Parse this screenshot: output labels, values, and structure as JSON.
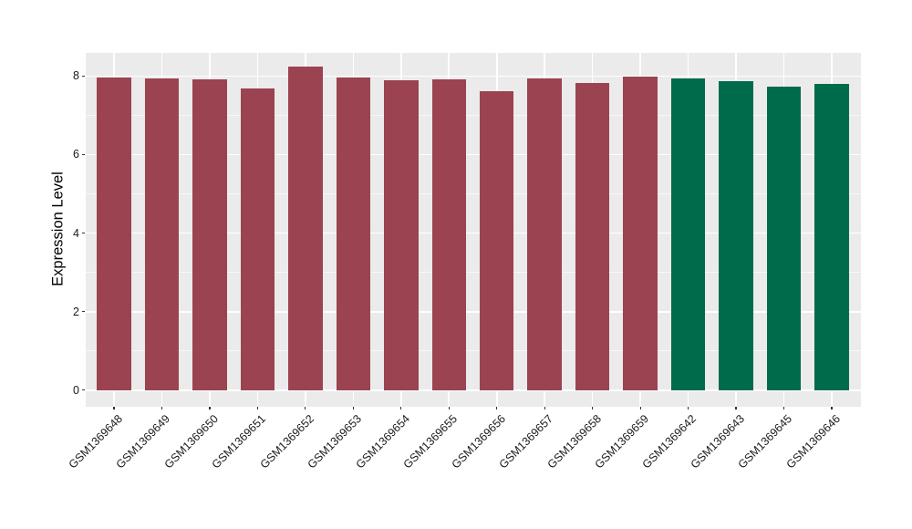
{
  "figure": {
    "background_color": "#ffffff",
    "panel_background_color": "#ebebeb",
    "grid_major_color": "#ffffff",
    "axis_text_color": "#1a1a1a",
    "tick_mark_color": "#333333"
  },
  "chart_data": {
    "type": "bar",
    "title": "",
    "xlabel": "",
    "ylabel": "Expression Level",
    "categories": [
      "GSM1369648",
      "GSM1369649",
      "GSM1369650",
      "GSM1369651",
      "GSM1369652",
      "GSM1369653",
      "GSM1369654",
      "GSM1369655",
      "GSM1369656",
      "GSM1369657",
      "GSM1369658",
      "GSM1369659",
      "GSM1369642",
      "GSM1369643",
      "GSM1369645",
      "GSM1369646"
    ],
    "values": [
      7.97,
      7.94,
      7.92,
      7.69,
      8.23,
      7.96,
      7.89,
      7.91,
      7.61,
      7.93,
      7.82,
      7.98,
      7.93,
      7.86,
      7.74,
      7.8
    ],
    "bar_colors": [
      "#9b4350",
      "#9b4350",
      "#9b4350",
      "#9b4350",
      "#9b4350",
      "#9b4350",
      "#9b4350",
      "#9b4350",
      "#9b4350",
      "#9b4350",
      "#9b4350",
      "#9b4350",
      "#006b4a",
      "#006b4a",
      "#006b4a",
      "#006b4a"
    ],
    "groups": [
      {
        "color": "#9b4350",
        "samples": [
          "GSM1369648",
          "GSM1369649",
          "GSM1369650",
          "GSM1369651",
          "GSM1369652",
          "GSM1369653",
          "GSM1369654",
          "GSM1369655",
          "GSM1369656",
          "GSM1369657",
          "GSM1369658",
          "GSM1369659"
        ]
      },
      {
        "color": "#006b4a",
        "samples": [
          "GSM1369642",
          "GSM1369643",
          "GSM1369645",
          "GSM1369646"
        ]
      }
    ],
    "yticks": [
      0,
      2,
      4,
      6,
      8
    ],
    "yticks_minor": [
      1,
      3,
      5,
      7
    ],
    "ylim": [
      -0.41,
      8.6
    ],
    "grid": true,
    "legend": "none",
    "x_label_rotation_deg": 45
  }
}
